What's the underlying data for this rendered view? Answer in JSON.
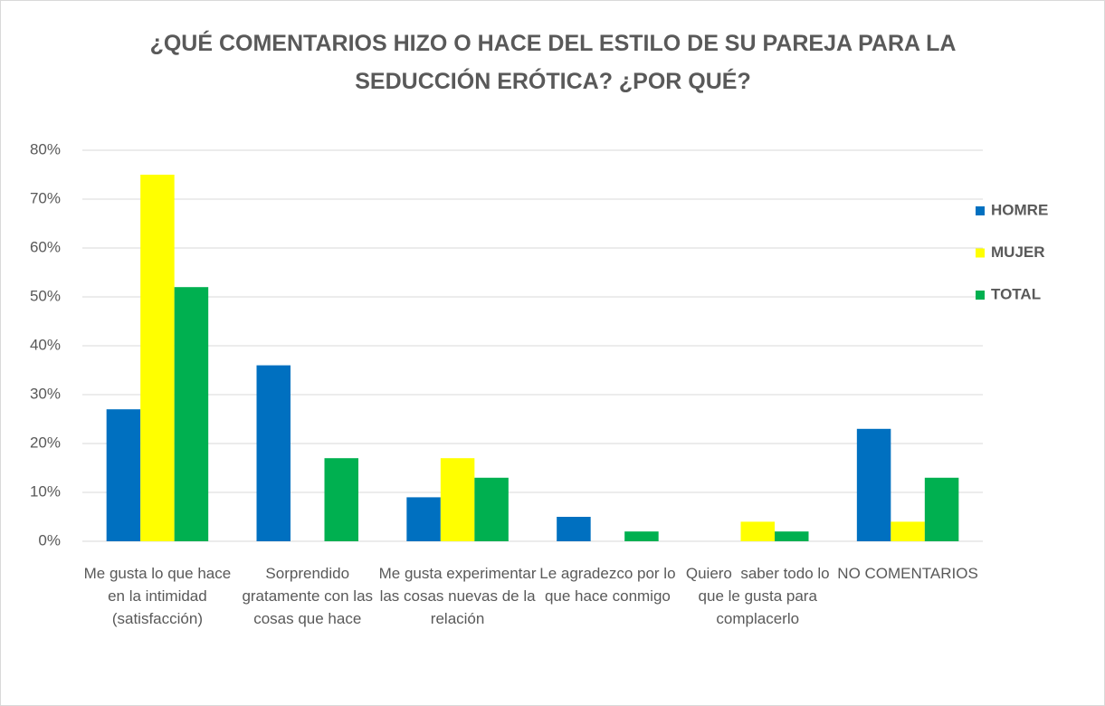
{
  "chart_data": {
    "type": "bar",
    "title": "¿QUÉ COMENTARIOS HIZO O HACE DEL ESTILO DE SU PAREJA PARA LA SEDUCCIÓN ERÓTICA? ¿POR QUÉ?",
    "categories": [
      "Me gusta lo que hace en la intimidad (satisfacción)",
      "Sorprendido gratamente con las cosas que hace",
      "Me gusta experimentar las cosas nuevas de la relación",
      "Le agradezco por lo que hace conmigo",
      "Quiero  saber todo lo que le gusta para complacerlo",
      "NO COMENTARIOS"
    ],
    "series": [
      {
        "name": "HOMRE",
        "color": "#0070c0",
        "values": [
          27,
          36,
          9,
          5,
          0,
          23
        ]
      },
      {
        "name": "MUJER",
        "color": "#ffff00",
        "values": [
          75,
          0,
          17,
          0,
          4,
          4
        ]
      },
      {
        "name": "TOTAL",
        "color": "#00b050",
        "values": [
          52,
          17,
          13,
          2,
          2,
          13
        ]
      }
    ],
    "ylim": [
      0,
      80
    ],
    "yticks": [
      {
        "value": 0,
        "label": "0%"
      },
      {
        "value": 10,
        "label": "10%"
      },
      {
        "value": 20,
        "label": "20%"
      },
      {
        "value": 30,
        "label": "30%"
      },
      {
        "value": 40,
        "label": "40%"
      },
      {
        "value": 50,
        "label": "50%"
      },
      {
        "value": 60,
        "label": "60%"
      },
      {
        "value": 70,
        "label": "70%"
      },
      {
        "value": 80,
        "label": "80%"
      }
    ],
    "grid": true,
    "legend": "right"
  }
}
